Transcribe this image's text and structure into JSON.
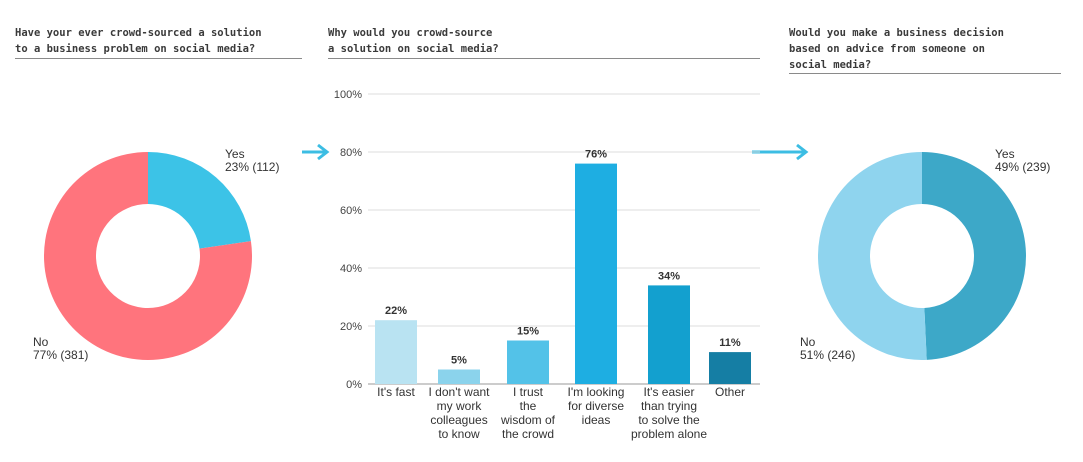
{
  "chart_data": [
    {
      "type": "pie",
      "title": "Have your ever crowd-sourced a solution\nto a business problem on social media?",
      "slices": [
        {
          "name": "Yes",
          "pct_label": "23% (112)",
          "value": 112,
          "color": "#3cc3e7"
        },
        {
          "name": "No",
          "pct_label": "77% (381)",
          "value": 381,
          "color": "#ff747d"
        }
      ]
    },
    {
      "type": "bar",
      "title": "Why would you crowd-source\na solution on social media?",
      "ylim": [
        0,
        100
      ],
      "yticks": [
        "0%",
        "20%",
        "40%",
        "60%",
        "80%",
        "100%"
      ],
      "categories": [
        "It's fast",
        "I don't want my work colleagues to know",
        "I trust the wisdom of the crowd",
        "I'm looking for diverse ideas",
        "It's easier than trying to solve the problem alone",
        "Other"
      ],
      "values": [
        22,
        5,
        15,
        76,
        34,
        11
      ],
      "value_labels": [
        "22%",
        "5%",
        "15%",
        "76%",
        "34%",
        "11%"
      ],
      "colors": [
        "#b9e3f2",
        "#8bd3ec",
        "#53c2e8",
        "#1eaee2",
        "#13a0cf",
        "#157ea4"
      ]
    },
    {
      "type": "pie",
      "title": "Would you make a business decision\nbased on advice from someone on\nsocial media?",
      "slices": [
        {
          "name": "Yes",
          "pct_label": "49% (239)",
          "value": 239,
          "color": "#3da8c8"
        },
        {
          "name": "No",
          "pct_label": "51% (246)",
          "value": 246,
          "color": "#8fd4ee"
        }
      ]
    }
  ],
  "colors": {
    "arrow": "#3cbde3",
    "rule": "#8a8a8a"
  }
}
